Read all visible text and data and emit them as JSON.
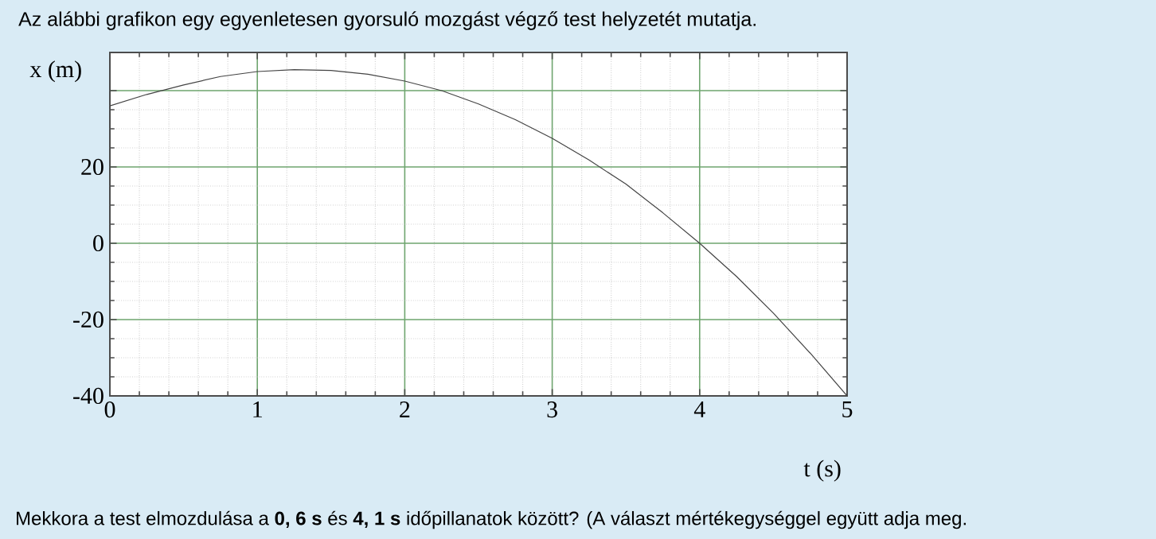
{
  "chart_data": {
    "type": "line",
    "title": "Az alábbi grafikon egy egyenletesen gyorsuló mozgást végző test helyzetét mutatja.",
    "xlabel": "t (s)",
    "ylabel": "x (m)",
    "annotations": [
      "Mekkora a test elmozdulása a **0, 6 s** és **4, 1 s** időpillanatok között? (A választ mértékegységgel együtt adja meg."
    ],
    "x": [
      0,
      0.25,
      0.5,
      0.75,
      1,
      1.25,
      1.5,
      1.75,
      2,
      2.25,
      2.5,
      2.75,
      3,
      3.25,
      3.5,
      3.75,
      4,
      4.25,
      4.5,
      4.75,
      5
    ],
    "values": [
      36,
      39,
      41.5,
      43.7,
      45,
      45.5,
      45.3,
      44.3,
      42.5,
      40,
      36.5,
      32.4,
      27.5,
      21.8,
      15.5,
      8,
      0,
      -8.7,
      -18.3,
      -28.8,
      -40
    ],
    "color": "#444444",
    "xlim": [
      0,
      5
    ],
    "ylim": [
      -40,
      50
    ],
    "xticks": [
      0,
      1,
      2,
      3,
      4,
      5
    ],
    "yticks": [
      -40,
      -20,
      0,
      20,
      {
        "value": 40,
        "label": null
      }
    ],
    "grid": true,
    "marker": "none",
    "line_style": "solid"
  }
}
